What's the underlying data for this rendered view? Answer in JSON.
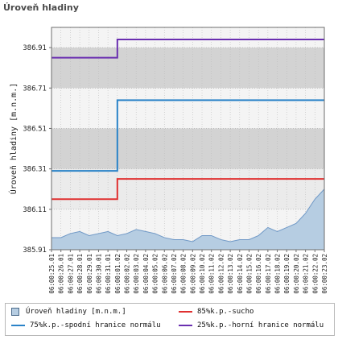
{
  "title": "Úroveň hladiny",
  "chart_data": {
    "type": "line",
    "ylabel": "Úroveň hladiny [m.n.m.]",
    "ylim": [
      385.91,
      387.01
    ],
    "yticks": [
      "386.91",
      "386.71",
      "386.51",
      "386.31",
      "386.11",
      "385.91"
    ],
    "ytick_values": [
      386.91,
      386.71,
      386.51,
      386.31,
      386.11,
      385.91
    ],
    "x": [
      "06:00:25.01",
      "06:00:26.01",
      "06:00:27.01",
      "06:00:28.01",
      "06:00:29.01",
      "06:00:30.01",
      "06:00:31.01",
      "06:00:01.02",
      "06:00:02.02",
      "06:00:03.02",
      "06:00:04.02",
      "06:00:05.02",
      "06:00:06.02",
      "06:00:07.02",
      "06:00:08.02",
      "06:00:09.02",
      "06:00:10.02",
      "06:00:11.02",
      "06:00:12.02",
      "06:00:13.02",
      "06:00:14.02",
      "06:00:15.02",
      "06:00:16.02",
      "06:00:17.02",
      "06:00:18.02",
      "06:00:19.02",
      "06:00:20.02",
      "06:00:21.02",
      "06:00:22.02",
      "06:00:23.02"
    ],
    "grid": true,
    "bands": [
      {
        "from": 386.71,
        "to": 386.91,
        "color": "#d3d3d3"
      },
      {
        "from": 386.31,
        "to": 386.51,
        "color": "#d3d3d3"
      },
      {
        "from": 386.11,
        "to": 386.31,
        "color": "#ebebeb"
      }
    ],
    "series": [
      {
        "name": "Úroveň hladiny [m.n.m.]",
        "kind": "area",
        "color": "#6f98c6",
        "fill": "#b6cde2",
        "values": [
          385.97,
          385.97,
          385.99,
          386.0,
          385.98,
          385.99,
          386.0,
          385.98,
          385.99,
          386.01,
          386.0,
          385.99,
          385.97,
          385.96,
          385.96,
          385.95,
          385.98,
          385.98,
          385.96,
          385.95,
          385.96,
          385.96,
          385.98,
          386.02,
          386.0,
          386.02,
          386.04,
          386.09,
          386.16,
          386.21
        ]
      },
      {
        "name": "85%k.p.-sucho",
        "kind": "line",
        "color": "#e03030",
        "values": [
          386.16,
          386.16,
          386.16,
          386.16,
          386.16,
          386.16,
          386.16,
          386.26,
          386.26,
          386.26,
          386.26,
          386.26,
          386.26,
          386.26,
          386.26,
          386.26,
          386.26,
          386.26,
          386.26,
          386.26,
          386.26,
          386.26,
          386.26,
          386.26,
          386.26,
          386.26,
          386.26,
          386.26,
          386.26,
          386.26
        ]
      },
      {
        "name": "75%k.p.-spodní hranice normálu",
        "kind": "line",
        "color": "#2a83c8",
        "values": [
          386.3,
          386.3,
          386.3,
          386.3,
          386.3,
          386.3,
          386.3,
          386.65,
          386.65,
          386.65,
          386.65,
          386.65,
          386.65,
          386.65,
          386.65,
          386.65,
          386.65,
          386.65,
          386.65,
          386.65,
          386.65,
          386.65,
          386.65,
          386.65,
          386.65,
          386.65,
          386.65,
          386.65,
          386.65,
          386.65
        ]
      },
      {
        "name": "25%k.p.-horní hranice normálu",
        "kind": "line",
        "color": "#6a2fb0",
        "values": [
          386.86,
          386.86,
          386.86,
          386.86,
          386.86,
          386.86,
          386.86,
          386.95,
          386.95,
          386.95,
          386.95,
          386.95,
          386.95,
          386.95,
          386.95,
          386.95,
          386.95,
          386.95,
          386.95,
          386.95,
          386.95,
          386.95,
          386.95,
          386.95,
          386.95,
          386.95,
          386.95,
          386.95,
          386.95,
          386.95
        ]
      }
    ]
  },
  "legend": [
    {
      "label": "Úroveň hladiny [m.n.m.]",
      "style": "box",
      "color": "#b6cde2",
      "border": "#4a6a8a"
    },
    {
      "label": "85%k.p.-sucho",
      "style": "line",
      "color": "#e03030"
    },
    {
      "label": "75%k.p.-spodní hranice normálu",
      "style": "line",
      "color": "#2a83c8"
    },
    {
      "label": "25%k.p.-horní hranice normálu",
      "style": "line",
      "color": "#6a2fb0"
    }
  ]
}
